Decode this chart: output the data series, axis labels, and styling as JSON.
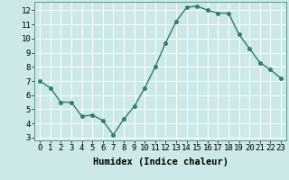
{
  "x": [
    0,
    1,
    2,
    3,
    4,
    5,
    6,
    7,
    8,
    9,
    10,
    11,
    12,
    13,
    14,
    15,
    16,
    17,
    18,
    19,
    20,
    21,
    22,
    23
  ],
  "y": [
    7.0,
    6.5,
    5.5,
    5.5,
    4.5,
    4.6,
    4.2,
    3.2,
    4.3,
    5.2,
    6.5,
    8.0,
    9.7,
    11.2,
    12.2,
    12.3,
    12.0,
    11.8,
    11.8,
    10.3,
    9.3,
    8.3,
    7.8,
    7.2
  ],
  "line_color": "#2e7d6e",
  "marker_color": "#2e7d6e",
  "bg_color": "#cce8e8",
  "grid_color": "#ffffff",
  "xlabel": "Humidex (Indice chaleur)",
  "xlabel_fontsize": 7.5,
  "xlim": [
    -0.5,
    23.5
  ],
  "ylim": [
    2.8,
    12.6
  ],
  "yticks": [
    3,
    4,
    5,
    6,
    7,
    8,
    9,
    10,
    11,
    12
  ],
  "xticks": [
    0,
    1,
    2,
    3,
    4,
    5,
    6,
    7,
    8,
    9,
    10,
    11,
    12,
    13,
    14,
    15,
    16,
    17,
    18,
    19,
    20,
    21,
    22,
    23
  ],
  "tick_fontsize": 6.5,
  "line_width": 1.0,
  "marker_size": 2.5
}
